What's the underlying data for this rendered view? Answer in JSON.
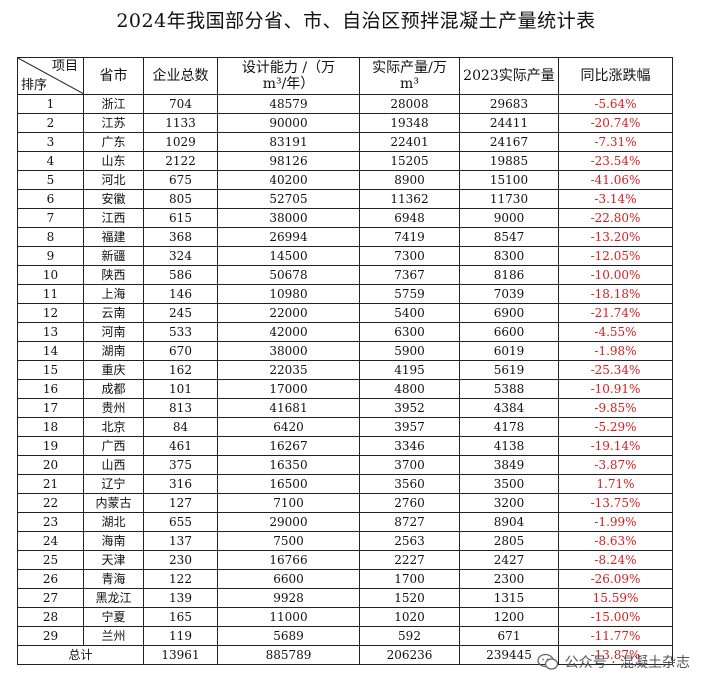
{
  "title": "2024年我国部分省、市、自治区预拌混凝土产量统计表",
  "header": {
    "corner_item": "项目",
    "corner_rank": "排序",
    "province": "省市",
    "companies": "企业总数",
    "capacity_line1": "设计能力 /（万",
    "capacity_line2": "m³/年）",
    "actual_line1": "实际产量/万",
    "actual_line2": "m³",
    "prev": "2023实际产量",
    "yoy": "同比涨跌幅"
  },
  "rows": [
    {
      "rank": "1",
      "province": "浙江",
      "companies": "704",
      "capacity": "48579",
      "actual": "28008",
      "prev": "29683",
      "yoy": "-5.64%"
    },
    {
      "rank": "2",
      "province": "江苏",
      "companies": "1133",
      "capacity": "90000",
      "actual": "19348",
      "prev": "24411",
      "yoy": "-20.74%"
    },
    {
      "rank": "3",
      "province": "广东",
      "companies": "1029",
      "capacity": "83191",
      "actual": "22401",
      "prev": "24167",
      "yoy": "-7.31%"
    },
    {
      "rank": "4",
      "province": "山东",
      "companies": "2122",
      "capacity": "98126",
      "actual": "15205",
      "prev": "19885",
      "yoy": "-23.54%"
    },
    {
      "rank": "5",
      "province": "河北",
      "companies": "675",
      "capacity": "40200",
      "actual": "8900",
      "prev": "15100",
      "yoy": "-41.06%"
    },
    {
      "rank": "6",
      "province": "安徽",
      "companies": "805",
      "capacity": "52705",
      "actual": "11362",
      "prev": "11730",
      "yoy": "-3.14%"
    },
    {
      "rank": "7",
      "province": "江西",
      "companies": "615",
      "capacity": "38000",
      "actual": "6948",
      "prev": "9000",
      "yoy": "-22.80%"
    },
    {
      "rank": "8",
      "province": "福建",
      "companies": "368",
      "capacity": "26994",
      "actual": "7419",
      "prev": "8547",
      "yoy": "-13.20%"
    },
    {
      "rank": "9",
      "province": "新疆",
      "companies": "324",
      "capacity": "14500",
      "actual": "7300",
      "prev": "8300",
      "yoy": "-12.05%"
    },
    {
      "rank": "10",
      "province": "陕西",
      "companies": "586",
      "capacity": "50678",
      "actual": "7367",
      "prev": "8186",
      "yoy": "-10.00%"
    },
    {
      "rank": "11",
      "province": "上海",
      "companies": "146",
      "capacity": "10980",
      "actual": "5759",
      "prev": "7039",
      "yoy": "-18.18%"
    },
    {
      "rank": "12",
      "province": "云南",
      "companies": "245",
      "capacity": "22000",
      "actual": "5400",
      "prev": "6900",
      "yoy": "-21.74%"
    },
    {
      "rank": "13",
      "province": "河南",
      "companies": "533",
      "capacity": "42000",
      "actual": "6300",
      "prev": "6600",
      "yoy": "-4.55%"
    },
    {
      "rank": "14",
      "province": "湖南",
      "companies": "670",
      "capacity": "38000",
      "actual": "5900",
      "prev": "6019",
      "yoy": "-1.98%"
    },
    {
      "rank": "15",
      "province": "重庆",
      "companies": "162",
      "capacity": "22035",
      "actual": "4195",
      "prev": "5619",
      "yoy": "-25.34%"
    },
    {
      "rank": "16",
      "province": "成都",
      "companies": "101",
      "capacity": "17000",
      "actual": "4800",
      "prev": "5388",
      "yoy": "-10.91%"
    },
    {
      "rank": "17",
      "province": "贵州",
      "companies": "813",
      "capacity": "41681",
      "actual": "3952",
      "prev": "4384",
      "yoy": "-9.85%"
    },
    {
      "rank": "18",
      "province": "北京",
      "companies": "84",
      "capacity": "6420",
      "actual": "3957",
      "prev": "4178",
      "yoy": "-5.29%"
    },
    {
      "rank": "19",
      "province": "广西",
      "companies": "461",
      "capacity": "16267",
      "actual": "3346",
      "prev": "4138",
      "yoy": "-19.14%"
    },
    {
      "rank": "20",
      "province": "山西",
      "companies": "375",
      "capacity": "16350",
      "actual": "3700",
      "prev": "3849",
      "yoy": "-3.87%"
    },
    {
      "rank": "21",
      "province": "辽宁",
      "companies": "316",
      "capacity": "16500",
      "actual": "3560",
      "prev": "3500",
      "yoy": "1.71%"
    },
    {
      "rank": "22",
      "province": "内蒙古",
      "companies": "127",
      "capacity": "7100",
      "actual": "2760",
      "prev": "3200",
      "yoy": "-13.75%"
    },
    {
      "rank": "23",
      "province": "湖北",
      "companies": "655",
      "capacity": "29000",
      "actual": "8727",
      "prev": "8904",
      "yoy": "-1.99%"
    },
    {
      "rank": "24",
      "province": "海南",
      "companies": "137",
      "capacity": "7500",
      "actual": "2563",
      "prev": "2805",
      "yoy": "-8.63%"
    },
    {
      "rank": "25",
      "province": "天津",
      "companies": "230",
      "capacity": "16766",
      "actual": "2227",
      "prev": "2427",
      "yoy": "-8.24%"
    },
    {
      "rank": "26",
      "province": "青海",
      "companies": "122",
      "capacity": "6600",
      "actual": "1700",
      "prev": "2300",
      "yoy": "-26.09%"
    },
    {
      "rank": "27",
      "province": "黑龙江",
      "companies": "139",
      "capacity": "9928",
      "actual": "1520",
      "prev": "1315",
      "yoy": "15.59%"
    },
    {
      "rank": "28",
      "province": "宁夏",
      "companies": "165",
      "capacity": "11000",
      "actual": "1020",
      "prev": "1200",
      "yoy": "-15.00%"
    },
    {
      "rank": "29",
      "province": "兰州",
      "companies": "119",
      "capacity": "5689",
      "actual": "592",
      "prev": "671",
      "yoy": "-11.77%"
    }
  ],
  "total": {
    "label": "总计",
    "companies": "13961",
    "capacity": "885789",
    "actual": "206236",
    "prev": "239445",
    "yoy": "-13.87%"
  },
  "watermark": {
    "icon": "wechat-icon",
    "text": "公众号 · 混凝土杂志"
  },
  "colors": {
    "change": "#d42020"
  }
}
